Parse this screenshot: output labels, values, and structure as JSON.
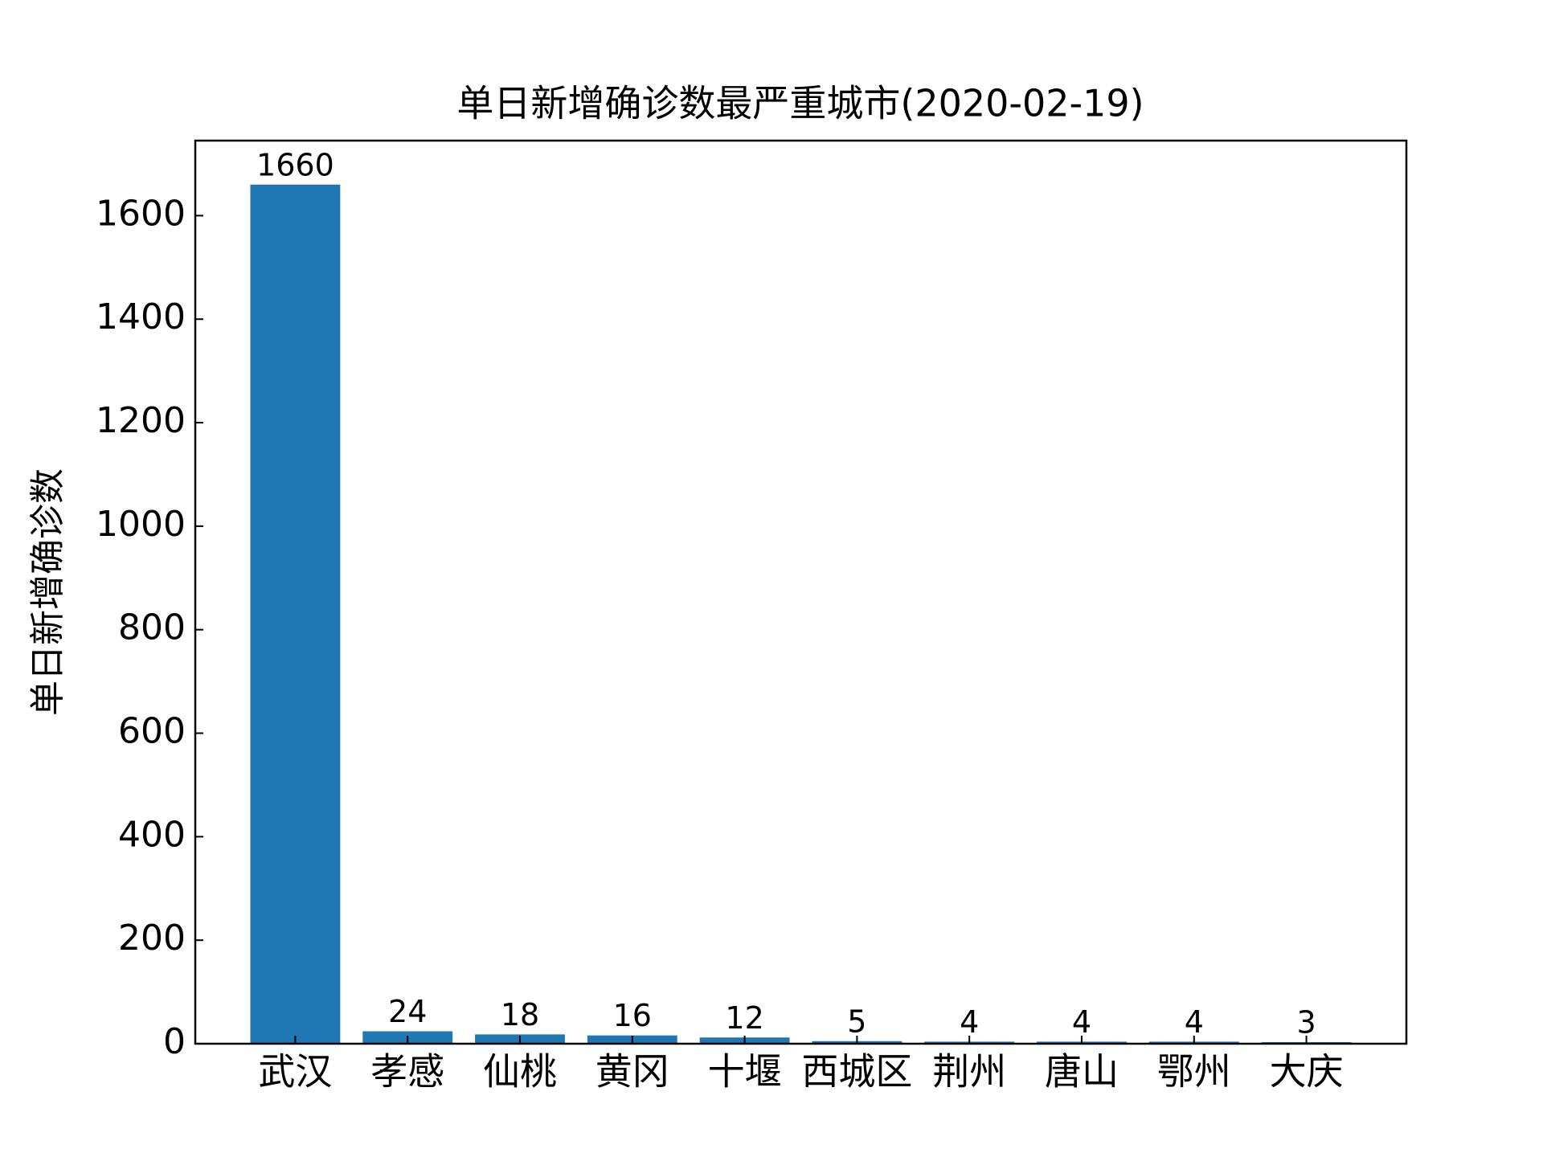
{
  "chart_data": {
    "type": "bar",
    "title": "单日新增确诊数最严重城市(2020-02-19)",
    "y_label": "单日新增确诊数",
    "categories": [
      "武汉",
      "孝感",
      "仙桃",
      "黄冈",
      "十堰",
      "西城区",
      "荆州",
      "唐山",
      "鄂州",
      "大庆"
    ],
    "values": [
      1660,
      24,
      18,
      16,
      12,
      5,
      4,
      4,
      4,
      3
    ],
    "color": "#1f77b4",
    "ylim": [
      0,
      1745
    ],
    "yticks": [
      0,
      200,
      400,
      600,
      800,
      1000,
      1200,
      1400,
      1600
    ],
    "grid": false
  }
}
